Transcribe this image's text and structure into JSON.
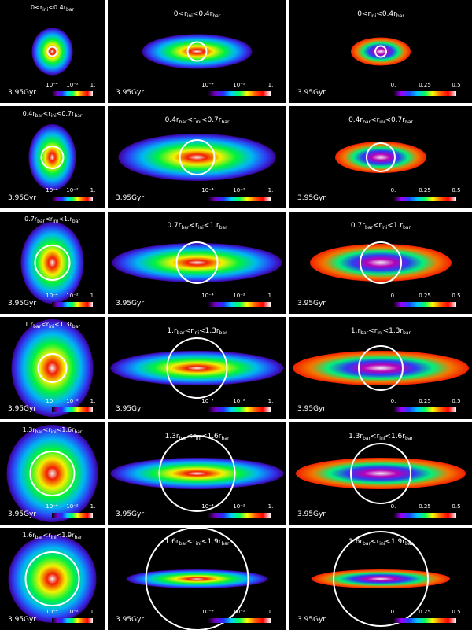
{
  "time_label": "3.95Gyr",
  "rows": [
    {
      "label_html": "0&lt;r<sub>ini</sub>&lt;0.4r<sub>bar</sub>"
    },
    {
      "label_html": "0.4r<sub>bar</sub>&lt;r<sub>ini</sub>&lt;0.7r<sub>bar</sub>"
    },
    {
      "label_html": "0.7r<sub>bar</sub>&lt;r<sub>ini</sub>&lt;1.r<sub>bar</sub>"
    },
    {
      "label_html": "1.r<sub>bar</sub>&lt;r<sub>ini</sub>&lt;1.3r<sub>bar</sub>"
    },
    {
      "label_html": "1.3r<sub>bar</sub>&lt;r<sub>ini</sub>&lt;1.6r<sub>bar</sub>"
    },
    {
      "label_html": "1.6r<sub>bar</sub>&lt;r<sub>ini</sub>&lt;1.9r<sub>bar</sub>"
    }
  ],
  "colorbar_density_ticks": [
    "10⁻⁴",
    "10⁻²",
    "1."
  ],
  "colorbar_ratio_ticks": [
    "0.",
    "0.25",
    "0.5"
  ],
  "colors": {
    "panel_bg": "#000000",
    "circle": "#ffffff"
  }
}
